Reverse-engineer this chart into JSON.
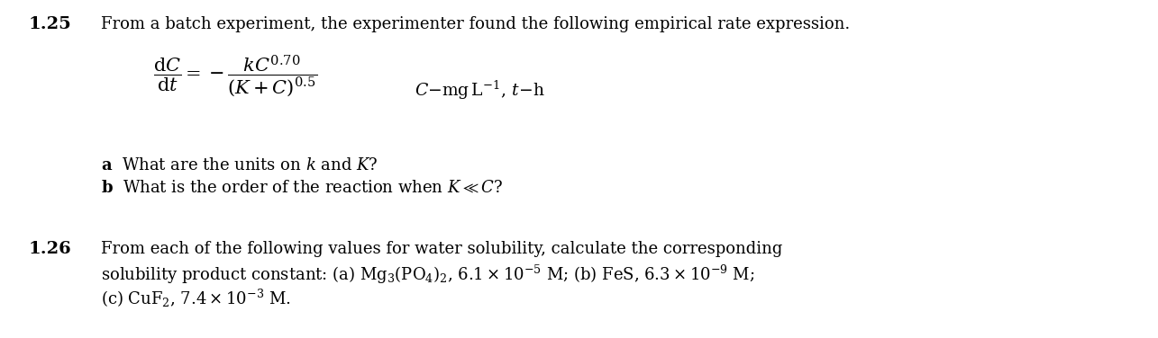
{
  "background_color": "#ffffff",
  "figsize": [
    12.85,
    3.76
  ],
  "dpi": 100,
  "problem_125_number": "1.25",
  "problem_125_text": "From a batch experiment, the experimenter found the following empirical rate expression.",
  "problem_126_number": "1.26"
}
